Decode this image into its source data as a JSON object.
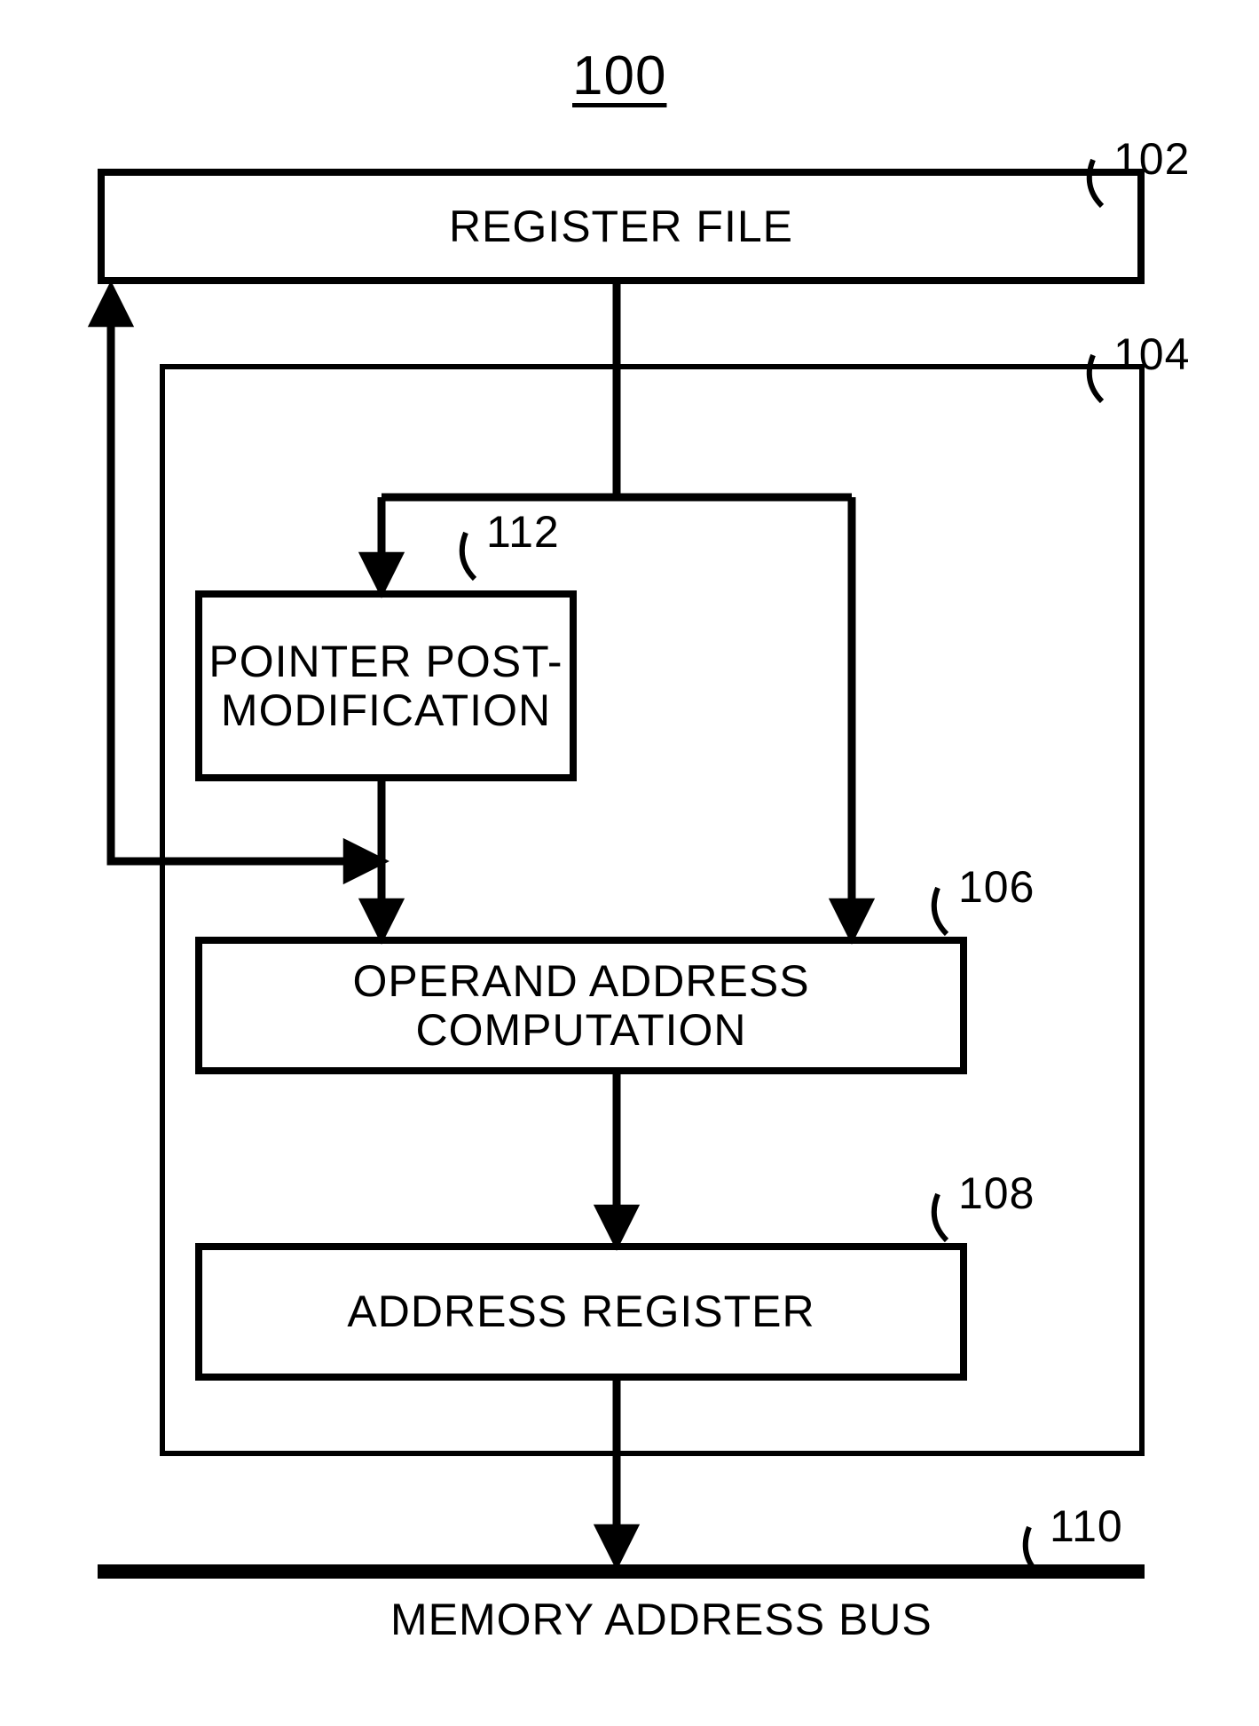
{
  "figure": {
    "title": "100",
    "title_fontsize": 62,
    "title_fontweight": "400",
    "stroke_color": "#000000",
    "background_color": "#ffffff",
    "box_border_width": 8,
    "container_border_width": 6,
    "arrow_stroke_width": 9,
    "memory_bus_width": 16,
    "label_fontsize": 50,
    "callout_fontsize": 50,
    "box_text_fontsize": 50
  },
  "boxes": {
    "register_file": {
      "text": "REGISTER FILE",
      "callout": "102"
    },
    "container": {
      "callout": "104"
    },
    "pointer": {
      "text": "POINTER\nPOST-MODIFICATION",
      "callout": "112"
    },
    "operand": {
      "text": "OPERAND ADDRESS COMPUTATION",
      "callout": "106"
    },
    "address_reg": {
      "text": "ADDRESS REGISTER",
      "callout": "108"
    },
    "memory_bus": {
      "text": "MEMORY ADDRESS BUS",
      "callout": "110"
    }
  }
}
